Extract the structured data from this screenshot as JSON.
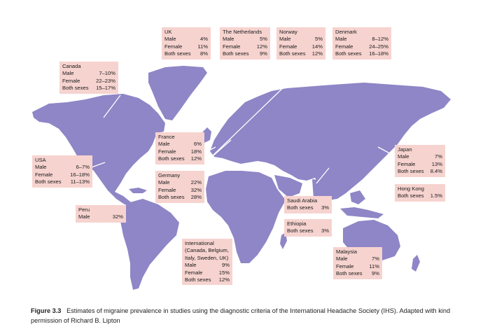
{
  "colors": {
    "land": "#8e86c6",
    "box": "#f6d3cf",
    "ocean": "#ffffff"
  },
  "boxes": [
    {
      "id": "uk",
      "title": [
        "UK"
      ],
      "rows": [
        [
          "Male",
          "4%"
        ],
        [
          "Female",
          "11%"
        ],
        [
          "Both sexes",
          "8%"
        ]
      ]
    },
    {
      "id": "netherlands",
      "title": [
        "The Netherlands"
      ],
      "rows": [
        [
          "Male",
          "5%"
        ],
        [
          "Female",
          "12%"
        ],
        [
          "Both sexes",
          "9%"
        ]
      ]
    },
    {
      "id": "norway",
      "title": [
        "Norway"
      ],
      "rows": [
        [
          "Male",
          "5%"
        ],
        [
          "Female",
          "14%"
        ],
        [
          "Both sexes",
          "12%"
        ]
      ]
    },
    {
      "id": "denmark",
      "title": [
        "Denmark"
      ],
      "rows": [
        [
          "Male",
          "8–12%"
        ],
        [
          "Female",
          "24–25%"
        ],
        [
          "Both sexes",
          "16–18%"
        ]
      ]
    },
    {
      "id": "canada",
      "title": [
        "Canada"
      ],
      "rows": [
        [
          "Male",
          "7–10%"
        ],
        [
          "Female",
          "22–23%"
        ],
        [
          "Both sexes",
          "15–17%"
        ]
      ]
    },
    {
      "id": "france",
      "title": [
        "France"
      ],
      "rows": [
        [
          "Male",
          "6%"
        ],
        [
          "Female",
          "18%"
        ],
        [
          "Both sexes",
          "12%"
        ]
      ]
    },
    {
      "id": "usa",
      "title": [
        "USA"
      ],
      "rows": [
        [
          "Male",
          "6–7%"
        ],
        [
          "Female",
          "16–18%"
        ],
        [
          "Both sexes",
          "11–13%"
        ]
      ]
    },
    {
      "id": "germany",
      "title": [
        "Germany"
      ],
      "rows": [
        [
          "Male",
          "22%"
        ],
        [
          "Female",
          "32%"
        ],
        [
          "Both sexes",
          "28%"
        ]
      ]
    },
    {
      "id": "japan",
      "title": [
        "Japan"
      ],
      "rows": [
        [
          "Male",
          "7%"
        ],
        [
          "Female",
          "13%"
        ],
        [
          "Both sexes",
          "8.4%"
        ]
      ]
    },
    {
      "id": "hongkong",
      "title": [
        "Hong Kong"
      ],
      "rows": [
        [
          "Both sexes",
          "1.5%"
        ]
      ]
    },
    {
      "id": "peru",
      "title": [
        "Peru"
      ],
      "rows": [
        [
          "Male",
          "32%"
        ]
      ]
    },
    {
      "id": "saudi",
      "title": [
        "Saudi Arabia"
      ],
      "rows": [
        [
          "Both sexes",
          "3%"
        ]
      ]
    },
    {
      "id": "ethiopia",
      "title": [
        "Ethiopia"
      ],
      "rows": [
        [
          "Both sexes",
          "3%"
        ]
      ]
    },
    {
      "id": "international",
      "title": [
        "International",
        "(Canada, Belgium,",
        "Italy, Sweden, UK)"
      ],
      "rows": [
        [
          "Male",
          "9%"
        ],
        [
          "Female",
          "15%"
        ],
        [
          "Both sexes",
          "12%"
        ]
      ]
    },
    {
      "id": "malaysia",
      "title": [
        "Malaysia"
      ],
      "rows": [
        [
          "Male",
          "7%"
        ],
        [
          "Female",
          "11%"
        ],
        [
          "Both sexes",
          "9%"
        ]
      ]
    }
  ],
  "caption": {
    "label": "Figure 3.3",
    "text": "Estimates of migraine prevalence in studies using the diagnostic criteria of the International Headache Society (IHS). Adapted with kind permission of Richard B. Lipton"
  }
}
